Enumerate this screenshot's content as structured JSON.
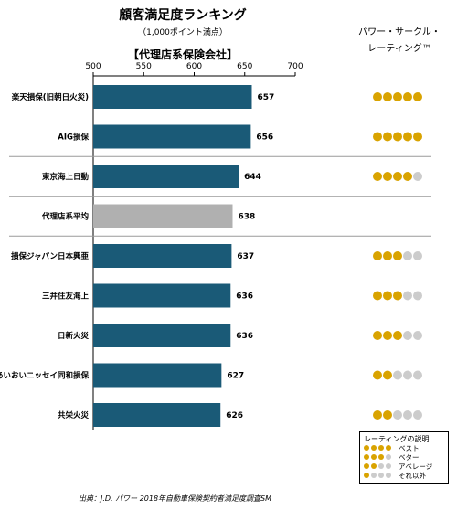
{
  "header": {
    "title": "顧客満足度ランキング",
    "subtitle": "（1,000ポイント満点）",
    "panel_title": "【代理店系保険会社】",
    "rating_title_line1": "パワー・サークル・",
    "rating_title_line2": "レーティング™"
  },
  "chart_data": {
    "type": "bar",
    "orientation": "horizontal",
    "title": "顧客満足度ランキング",
    "subtitle": "（1,000ポイント満点）",
    "xlim": [
      500,
      700
    ],
    "xticks": [
      500,
      550,
      600,
      650,
      700
    ],
    "grid": false,
    "categories": [
      "楽天損保(旧朝日火災)",
      "AIG損保",
      "東京海上日動",
      "代理店系平均",
      "損保ジャパン日本興亜",
      "三井住友海上",
      "日新火災",
      "あいおいニッセイ同和損保",
      "共栄火災"
    ],
    "values": [
      657,
      656,
      644,
      638,
      637,
      636,
      636,
      627,
      626
    ],
    "ratings": [
      5,
      5,
      4,
      null,
      3,
      3,
      3,
      2,
      2
    ],
    "bar_colors": [
      "#1a5a77",
      "#1a5a77",
      "#1a5a77",
      "#b0b0b0",
      "#1a5a77",
      "#1a5a77",
      "#1a5a77",
      "#1a5a77",
      "#1a5a77"
    ]
  },
  "colors": {
    "bar": "#1a5a77",
    "average_bar": "#b0b0b0",
    "dot_filled": "#d9a300",
    "dot_empty": "#cccccc",
    "separator": "#9a9a9a"
  },
  "legend": {
    "title": "レーティングの説明",
    "items": [
      {
        "label": "ベスト",
        "filled": 5
      },
      {
        "label": "ベター",
        "filled": 4
      },
      {
        "label": "アベレージ",
        "filled": 3
      },
      {
        "label": "それ以外",
        "filled": 2
      }
    ]
  },
  "footer": {
    "source": "出典：J.D. パワー 2018年自動車保険契約者満足度調査SM"
  }
}
